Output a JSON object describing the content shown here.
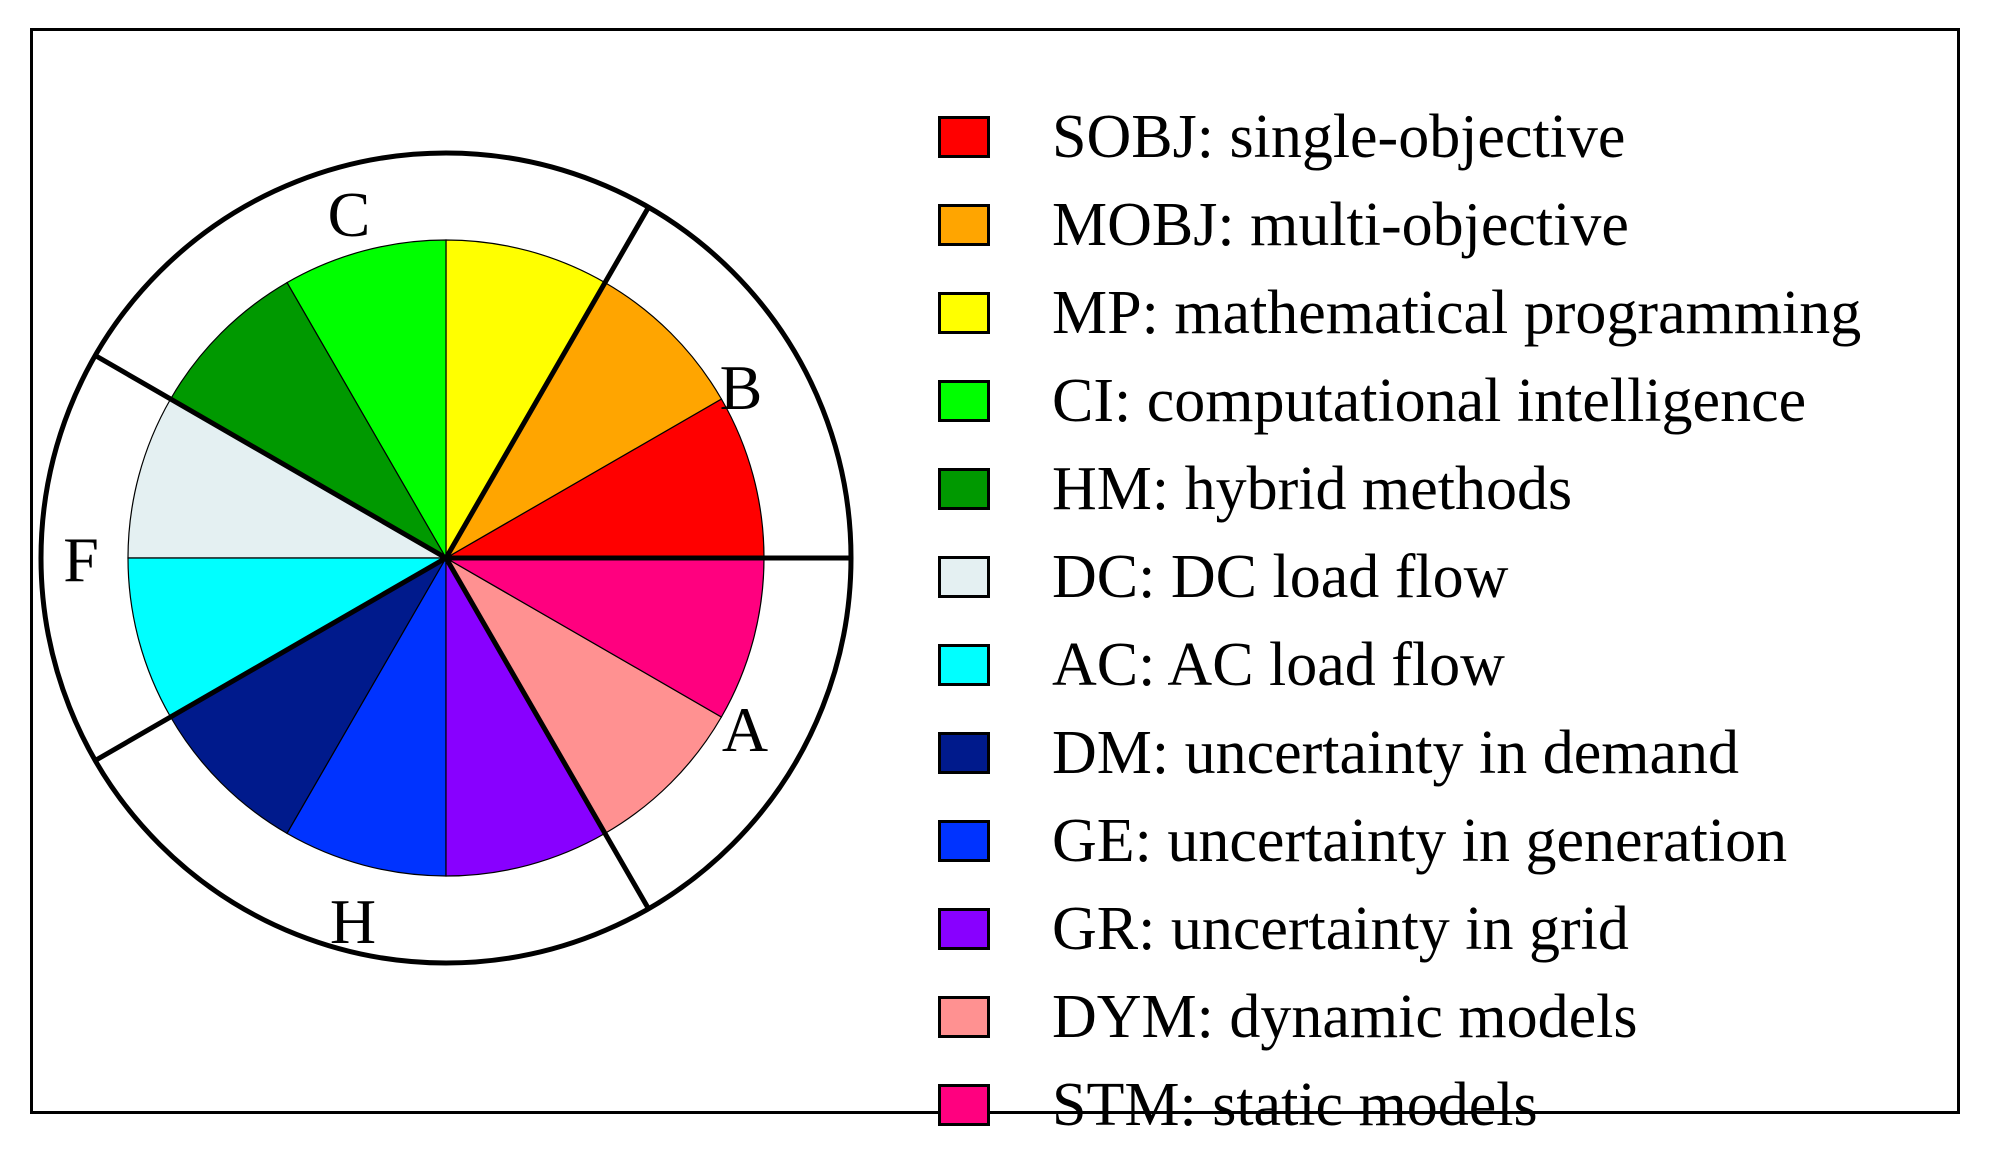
{
  "segments": [
    {
      "code": "SOBJ",
      "color": "#ff0000"
    },
    {
      "code": "MOBJ",
      "color": "#ffa500"
    },
    {
      "code": "MP",
      "color": "#ffff00"
    },
    {
      "code": "CI",
      "color": "#00ff00"
    },
    {
      "code": "HM",
      "color": "#009900"
    },
    {
      "code": "DC",
      "color": "#e4f0f2"
    },
    {
      "code": "AC",
      "color": "#00ffff"
    },
    {
      "code": "DM",
      "color": "#001a8c"
    },
    {
      "code": "GE",
      "color": "#0033ff"
    },
    {
      "code": "GR",
      "color": "#8800ff"
    },
    {
      "code": "DYM",
      "color": "#ff9191"
    },
    {
      "code": "STM",
      "color": "#ff007f"
    }
  ],
  "groups": [
    {
      "label": "A"
    },
    {
      "label": "B"
    },
    {
      "label": "C"
    },
    {
      "label": "F"
    },
    {
      "label": "H"
    }
  ],
  "legend": [
    {
      "text": "SOBJ: single-objective",
      "color": "#ff0000"
    },
    {
      "text": "MOBJ: multi-objective",
      "color": "#ffa500"
    },
    {
      "text": "MP: mathematical programming",
      "color": "#ffff00"
    },
    {
      "text": "CI: computational intelligence",
      "color": "#00ff00"
    },
    {
      "text": "HM: hybrid methods",
      "color": "#009900"
    },
    {
      "text": "DC: DC load flow",
      "color": "#e4f0f2"
    },
    {
      "text": "AC: AC load flow",
      "color": "#00ffff"
    },
    {
      "text": "DM: uncertainty in demand",
      "color": "#001a8c"
    },
    {
      "text": "GE: uncertainty in generation",
      "color": "#0033ff"
    },
    {
      "text": "GR: uncertainty in grid",
      "color": "#8800ff"
    },
    {
      "text": "DYM: dynamic models",
      "color": "#ff9191"
    },
    {
      "text": "STM: static models",
      "color": "#ff007f"
    }
  ]
}
